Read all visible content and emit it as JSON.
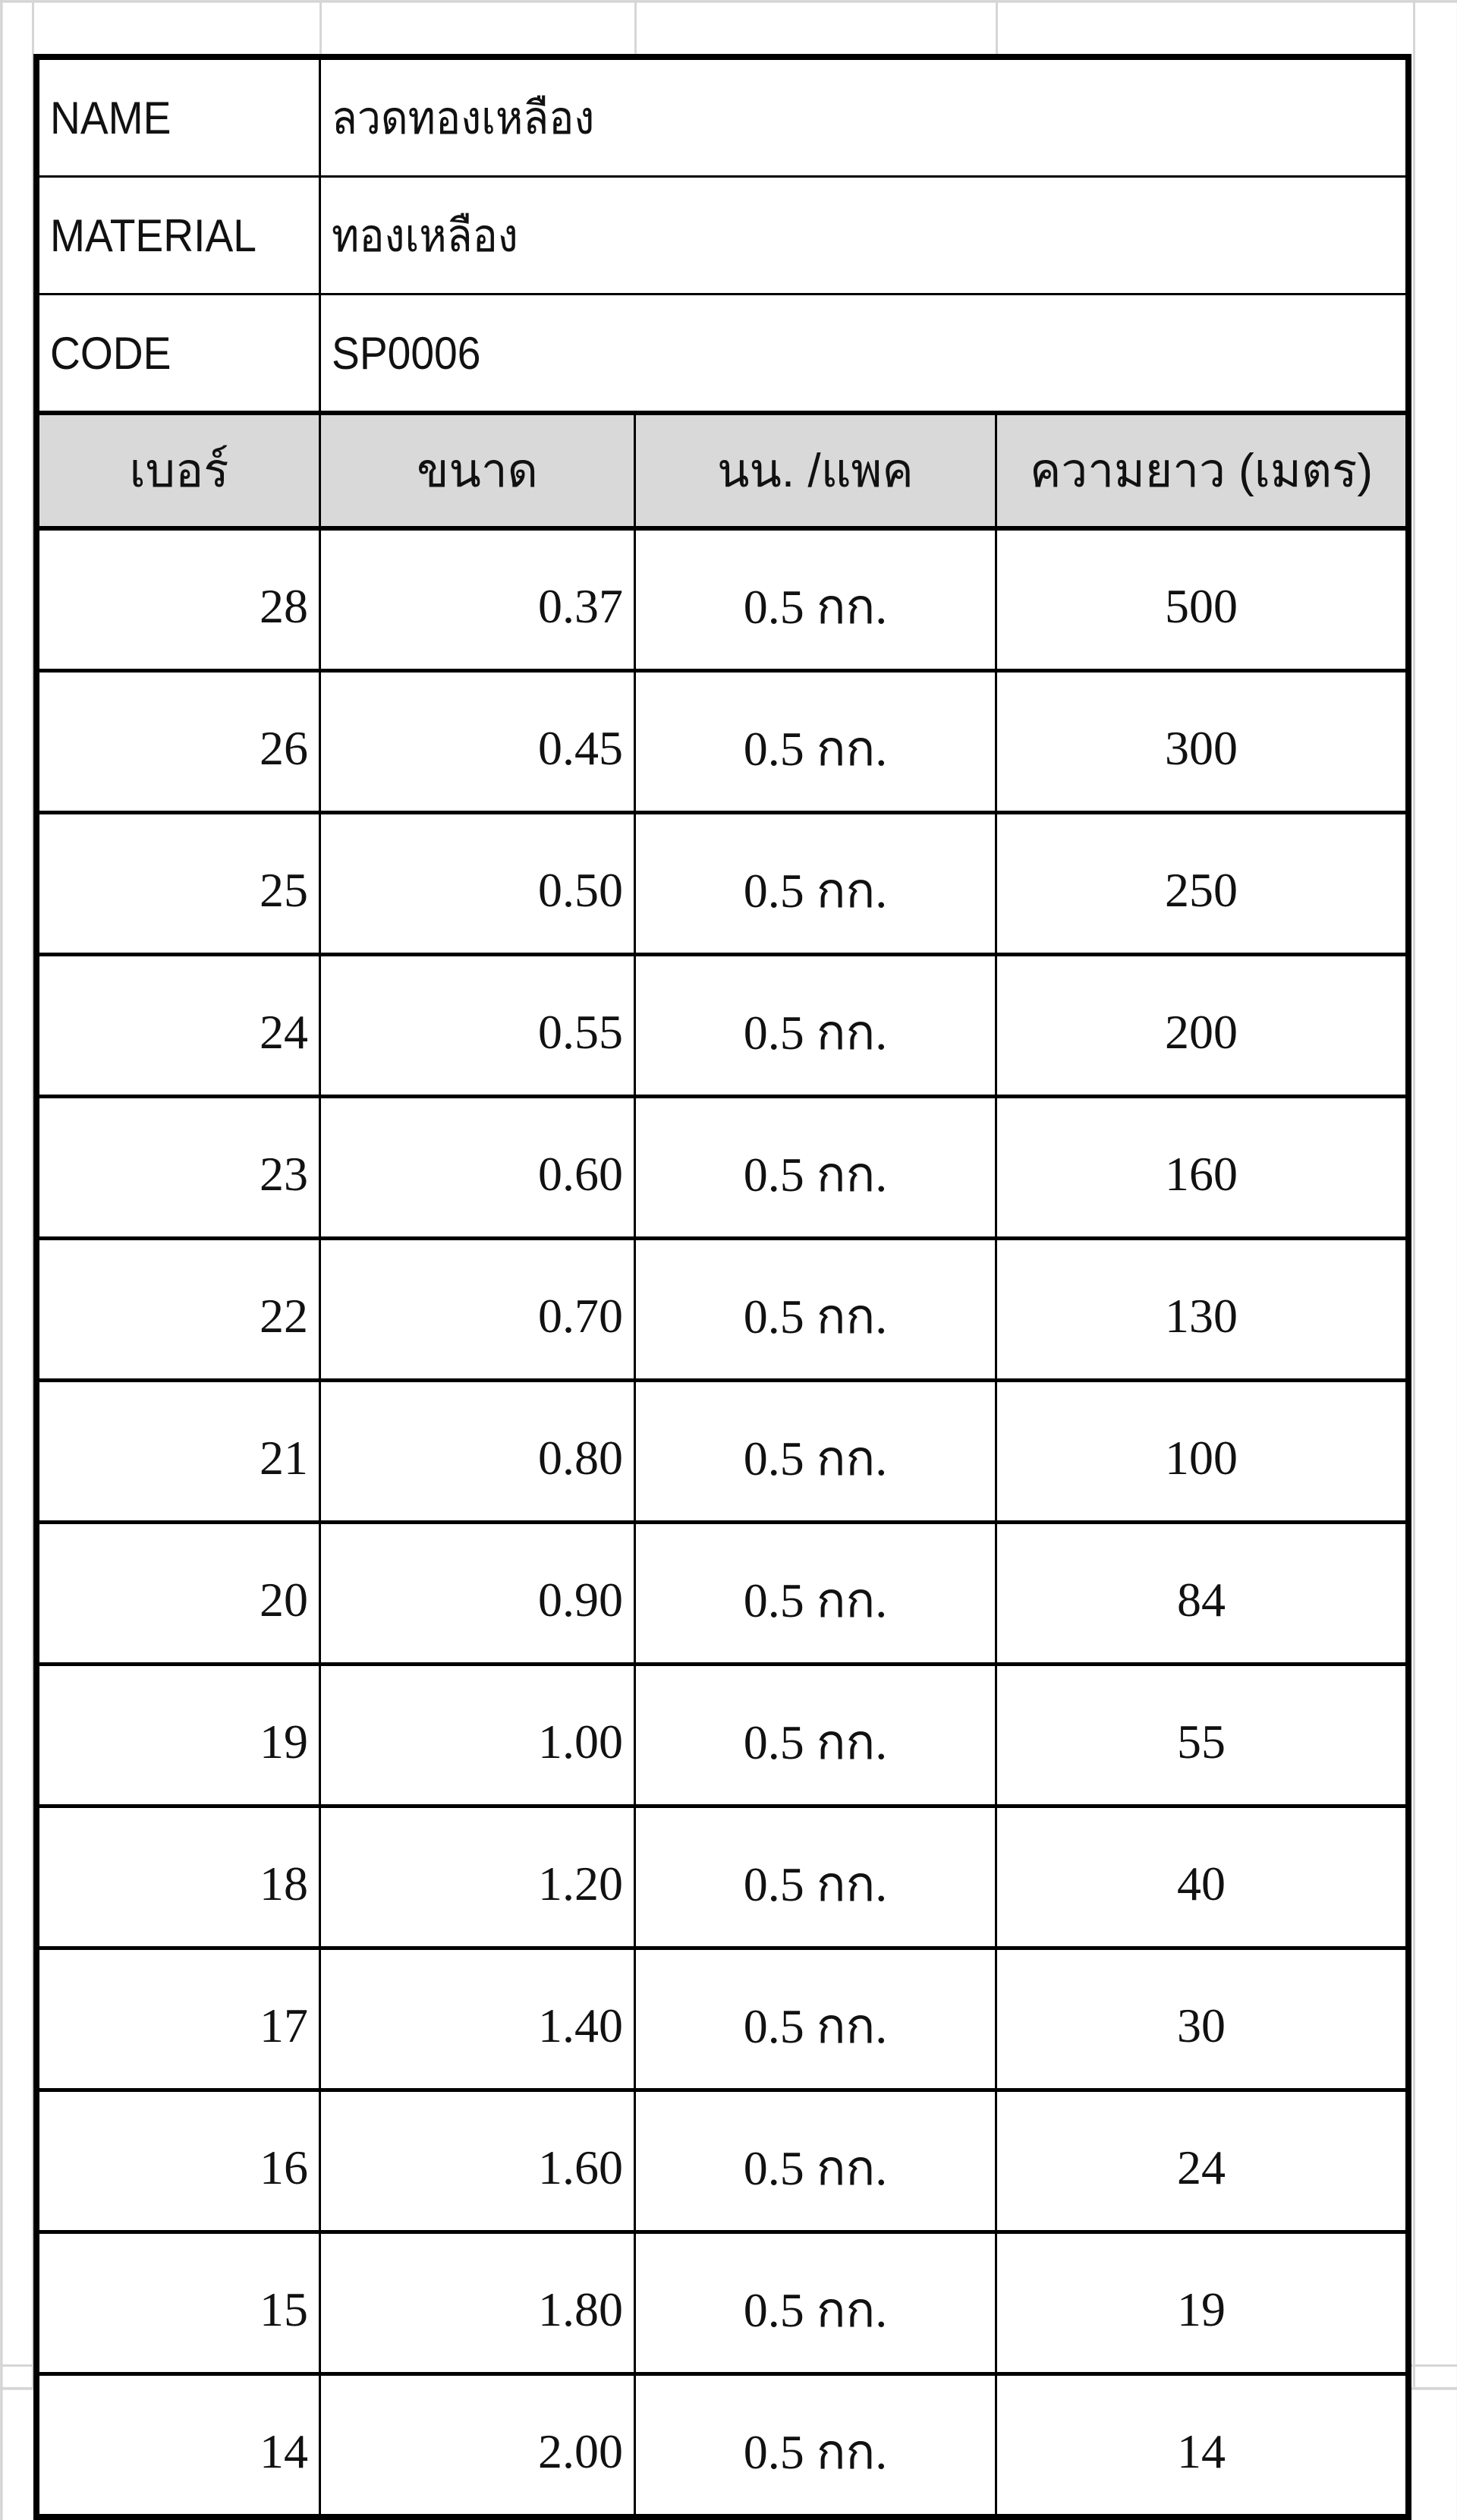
{
  "info": {
    "name_label": "NAME",
    "name_value": "ลวดทองเหลือง",
    "material_label": "MATERIAL",
    "material_value": "ทองเหลือง",
    "code_label": "CODE",
    "code_value": "SP0006"
  },
  "columns": [
    "เบอร์",
    "ขนาด",
    "นน. /แพค",
    "ความยาว (เมตร)"
  ],
  "rows": [
    [
      "28",
      "0.37",
      "0.5 กก.",
      "500"
    ],
    [
      "26",
      "0.45",
      "0.5 กก.",
      "300"
    ],
    [
      "25",
      "0.50",
      "0.5 กก.",
      "250"
    ],
    [
      "24",
      "0.55",
      "0.5 กก.",
      "200"
    ],
    [
      "23",
      "0.60",
      "0.5 กก.",
      "160"
    ],
    [
      "22",
      "0.70",
      "0.5 กก.",
      "130"
    ],
    [
      "21",
      "0.80",
      "0.5 กก.",
      "100"
    ],
    [
      "20",
      "0.90",
      "0.5 กก.",
      "84"
    ],
    [
      "19",
      "1.00",
      "0.5 กก.",
      "55"
    ],
    [
      "18",
      "1.20",
      "0.5 กก.",
      "40"
    ],
    [
      "17",
      "1.40",
      "0.5 กก.",
      "30"
    ],
    [
      "16",
      "1.60",
      "0.5 กก.",
      "24"
    ],
    [
      "15",
      "1.80",
      "0.5 กก.",
      "19"
    ],
    [
      "14",
      "2.00",
      "0.5 กก.",
      "14"
    ]
  ]
}
